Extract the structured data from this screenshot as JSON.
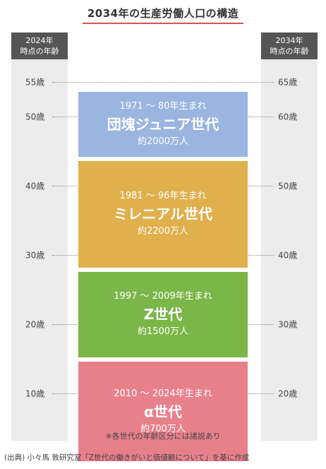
{
  "title": "2034年の生産労働人口の構造",
  "left_header": "2024年\n時点の年齢",
  "right_header": "2034年\n時点の年齢",
  "ticks": [
    {
      "age": 55,
      "left": "55歳",
      "right": "65歳"
    },
    {
      "age": 50,
      "left": "50歳",
      "right": "60歳"
    },
    {
      "age": 40,
      "left": "40歳",
      "right": "50歳"
    },
    {
      "age": 30,
      "left": "30歳",
      "right": "40歳"
    },
    {
      "age": 20,
      "left": "20歳",
      "right": "30歳"
    },
    {
      "age": 10,
      "left": "10歳",
      "right": "20歳"
    }
  ],
  "generations": [
    {
      "years": "1971 ～ 80年生まれ",
      "name": "団塊ジュニア世代",
      "population": "約2000万人",
      "color": "#9ab5e0",
      "age_from": 44,
      "age_to": 53
    },
    {
      "years": "1981 ～ 96年生まれ",
      "name": "ミレニアル世代",
      "population": "約2200万人",
      "color": "#e0b04d",
      "age_from": 28,
      "age_to": 43
    },
    {
      "years": "1997 ～ 2009年生まれ",
      "name": "Z世代",
      "population": "約1500万人",
      "color": "#7ab648",
      "age_from": 15,
      "age_to": 27
    },
    {
      "years": "2010 ～ 2024年生まれ",
      "name": "α世代",
      "population": "約700万人",
      "color": "#e8808c",
      "age_from": 0,
      "age_to": 14
    }
  ],
  "note": "※各世代の年齢区分には諸説あり",
  "source": "(出典) 小々馬 敦研究室「Z世代の働きがいと価値観について」を基に作成"
}
